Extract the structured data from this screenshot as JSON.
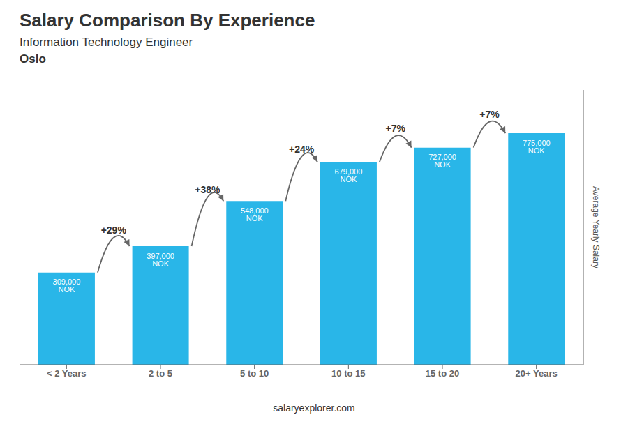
{
  "chart_data": {
    "type": "bar",
    "title": "Salary Comparison By Experience",
    "subtitle": [
      "Information Technology Engineer",
      "Oslo"
    ],
    "categories": [
      "< 2 Years",
      "2 to 5",
      "5 to 10",
      "10 to 15",
      "15 to 20",
      "20+ Years"
    ],
    "values": [
      309000,
      397000,
      548000,
      679000,
      727000,
      775000
    ],
    "value_labels": [
      "309,000 NOK",
      "397,000 NOK",
      "548,000 NOK",
      "679,000 NOK",
      "727,000 NOK",
      "775,000 NOK"
    ],
    "data_labels": true,
    "color": "#29b6e8",
    "ylabel": "Average Yearly Salary",
    "ylim": [
      0,
      920000
    ],
    "yticks": [],
    "tick_labels": "x",
    "grid": false,
    "annotations": [
      {
        "from": "< 2 Years",
        "to": "2 to 5",
        "text": "+29%"
      },
      {
        "from": "2 to 5",
        "to": "5 to 10",
        "text": "+38%"
      },
      {
        "from": "5 to 10",
        "to": "10 to 15",
        "text": "+24%"
      },
      {
        "from": "10 to 15",
        "to": "15 to 20",
        "text": "+7%"
      },
      {
        "from": "15 to 20",
        "to": "20+ Years",
        "text": "+7%"
      },
      {
        "text": "salaryexplorer.com"
      }
    ]
  }
}
